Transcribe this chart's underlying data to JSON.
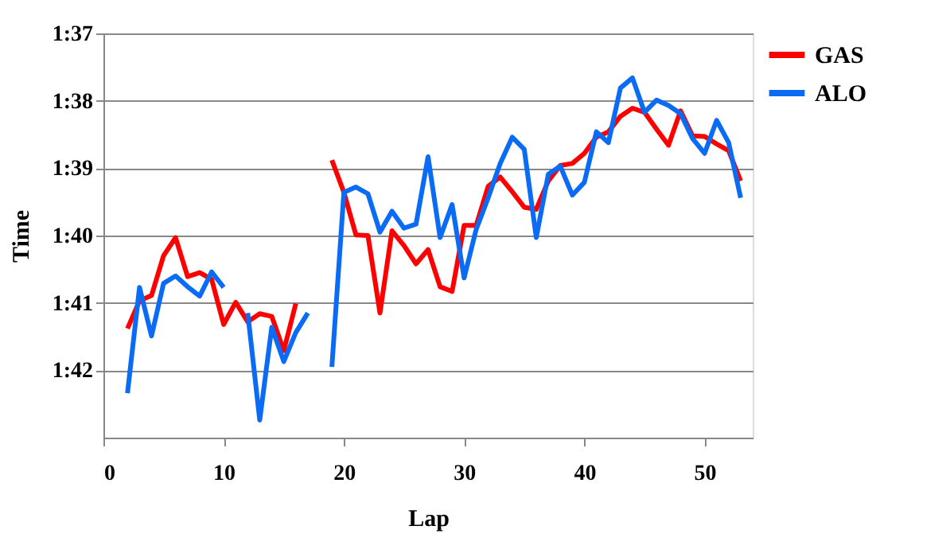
{
  "chart_data": {
    "type": "line",
    "xlabel": "Lap",
    "ylabel": "Time",
    "x": [
      2,
      3,
      4,
      5,
      6,
      7,
      8,
      9,
      10,
      11,
      12,
      13,
      14,
      15,
      16,
      17,
      18,
      19,
      20,
      21,
      22,
      23,
      24,
      25,
      26,
      27,
      28,
      29,
      30,
      31,
      32,
      33,
      34,
      35,
      36,
      37,
      38,
      39,
      40,
      41,
      42,
      43,
      44,
      45,
      46,
      47,
      48,
      49,
      50,
      51,
      52,
      53
    ],
    "series": [
      {
        "name": "GAS",
        "color": "#ff0000",
        "values": [
          101.38,
          100.97,
          100.89,
          100.3,
          100.03,
          100.61,
          100.55,
          100.65,
          101.32,
          100.99,
          101.28,
          101.16,
          101.2,
          101.71,
          101.01,
          null,
          null,
          98.88,
          99.36,
          99.99,
          100.0,
          101.15,
          99.93,
          100.15,
          100.42,
          100.21,
          100.76,
          100.83,
          99.85,
          99.85,
          99.27,
          99.13,
          99.35,
          99.58,
          99.61,
          99.19,
          98.96,
          98.93,
          98.78,
          98.54,
          98.46,
          98.23,
          98.11,
          98.17,
          98.42,
          98.66,
          98.15,
          98.52,
          98.53,
          98.64,
          98.74,
          99.19
        ]
      },
      {
        "name": "ALO",
        "color": "#0a6cf5",
        "values": [
          102.34,
          100.77,
          101.49,
          100.71,
          100.6,
          100.76,
          100.9,
          100.54,
          100.77,
          null,
          101.15,
          102.74,
          101.36,
          101.87,
          101.44,
          101.15,
          null,
          101.95,
          99.36,
          99.28,
          99.38,
          99.95,
          99.64,
          99.89,
          99.83,
          98.83,
          100.03,
          99.54,
          100.63,
          99.91,
          99.44,
          98.93,
          98.54,
          98.72,
          100.03,
          99.09,
          98.97,
          99.4,
          99.21,
          98.46,
          98.62,
          97.81,
          97.66,
          98.17,
          97.99,
          98.07,
          98.19,
          98.56,
          98.78,
          98.29,
          98.62,
          99.44
        ]
      }
    ],
    "xlim": [
      0,
      54
    ],
    "xticks": [
      0,
      10,
      20,
      30,
      40,
      50
    ],
    "ylim": [
      103,
      97
    ],
    "yticks": [
      {
        "value": 97,
        "label": "1:37"
      },
      {
        "value": 98,
        "label": "1:38"
      },
      {
        "value": 99,
        "label": "1:39"
      },
      {
        "value": 100,
        "label": "1:40"
      },
      {
        "value": 101,
        "label": "1:41"
      },
      {
        "value": 102,
        "label": "1:42"
      }
    ],
    "grid": "y",
    "legend": "right",
    "marker": "none",
    "line_style": "solid"
  }
}
